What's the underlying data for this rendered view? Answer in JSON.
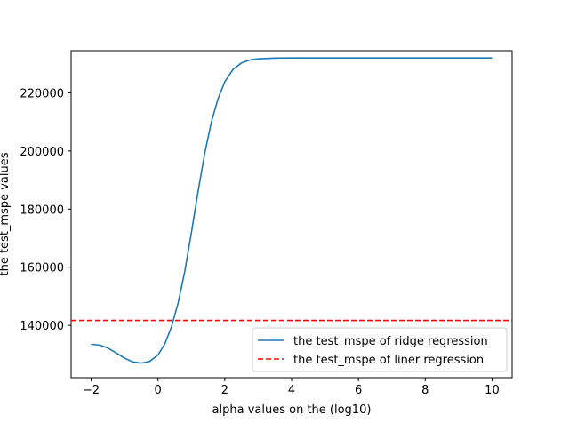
{
  "chart_data": {
    "type": "line",
    "title": "",
    "xlabel": "alpha values on the (log10)",
    "ylabel": "the test_mspe values",
    "xlim": [
      -2.6,
      10.6
    ],
    "ylim": [
      122000,
      234500
    ],
    "xticks": [
      -2,
      0,
      2,
      4,
      6,
      8,
      10
    ],
    "xtick_labels": [
      "−2",
      "0",
      "2",
      "4",
      "6",
      "8",
      "10"
    ],
    "yticks": [
      140000,
      160000,
      180000,
      200000,
      220000
    ],
    "ytick_labels": [
      "140000",
      "160000",
      "180000",
      "200000",
      "220000"
    ],
    "grid": false,
    "legend_position": "lower-right",
    "series": [
      {
        "name": "the test_mspe of ridge regression",
        "style": "solid",
        "color": "#1f77b4",
        "x": [
          -2.0,
          -1.75,
          -1.5,
          -1.25,
          -1.0,
          -0.75,
          -0.5,
          -0.25,
          0.0,
          0.2,
          0.4,
          0.6,
          0.8,
          1.0,
          1.2,
          1.4,
          1.6,
          1.8,
          2.0,
          2.25,
          2.5,
          2.75,
          3.0,
          3.5,
          4.0,
          5.0,
          6.0,
          8.0,
          10.0
        ],
        "y": [
          133500,
          133200,
          132200,
          130500,
          128700,
          127400,
          127000,
          127600,
          129800,
          133500,
          139300,
          147500,
          158400,
          171800,
          186000,
          199200,
          210000,
          218000,
          223800,
          228100,
          230300,
          231300,
          231700,
          231950,
          232000,
          232000,
          232000,
          232000,
          232000
        ]
      },
      {
        "name": "the test_mspe of liner regression",
        "style": "dashed",
        "color": "#ff0000",
        "y_constant": 141700
      }
    ]
  }
}
